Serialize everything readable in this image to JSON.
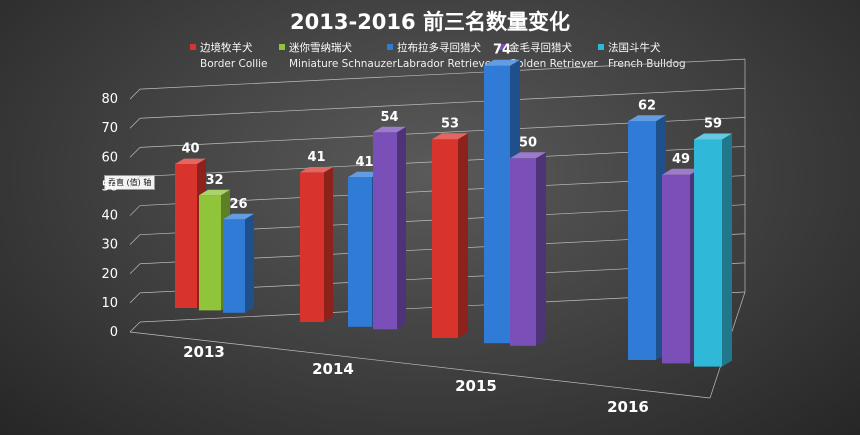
{
  "chart_data": {
    "type": "bar",
    "title": "2013-2016 前三名数量变化",
    "y_axis_label": "垂直 (值) 轴",
    "ylim": [
      0,
      80
    ],
    "y_ticks": [
      "0",
      "10",
      "20",
      "30",
      "40",
      "50",
      "60",
      "70",
      "80"
    ],
    "categories": [
      "2013",
      "2014",
      "2015",
      "2016"
    ],
    "series": [
      {
        "name": "边境牧羊犬",
        "name_en": "Border Collie",
        "color": "#d9342b",
        "values": [
          40,
          41,
          53,
          null
        ]
      },
      {
        "name": "迷你雪纳瑞犬",
        "name_en": "Miniature Schnauzer",
        "color": "#8fc43b",
        "values": [
          32,
          null,
          null,
          null
        ]
      },
      {
        "name": "拉布拉多寻回猎犬",
        "name_en": "Labrador Retriever",
        "color": "#2f7bd6",
        "values": [
          26,
          41,
          74,
          62
        ]
      },
      {
        "name": "金毛寻回猎犬",
        "name_en": "Golden Retriever",
        "color": "#7a4fb8",
        "values": [
          null,
          54,
          50,
          49
        ]
      },
      {
        "name": "法国斗牛犬",
        "name_en": "French Bulldog",
        "color": "#2fb8d8",
        "values": [
          null,
          null,
          null,
          59
        ]
      }
    ]
  }
}
